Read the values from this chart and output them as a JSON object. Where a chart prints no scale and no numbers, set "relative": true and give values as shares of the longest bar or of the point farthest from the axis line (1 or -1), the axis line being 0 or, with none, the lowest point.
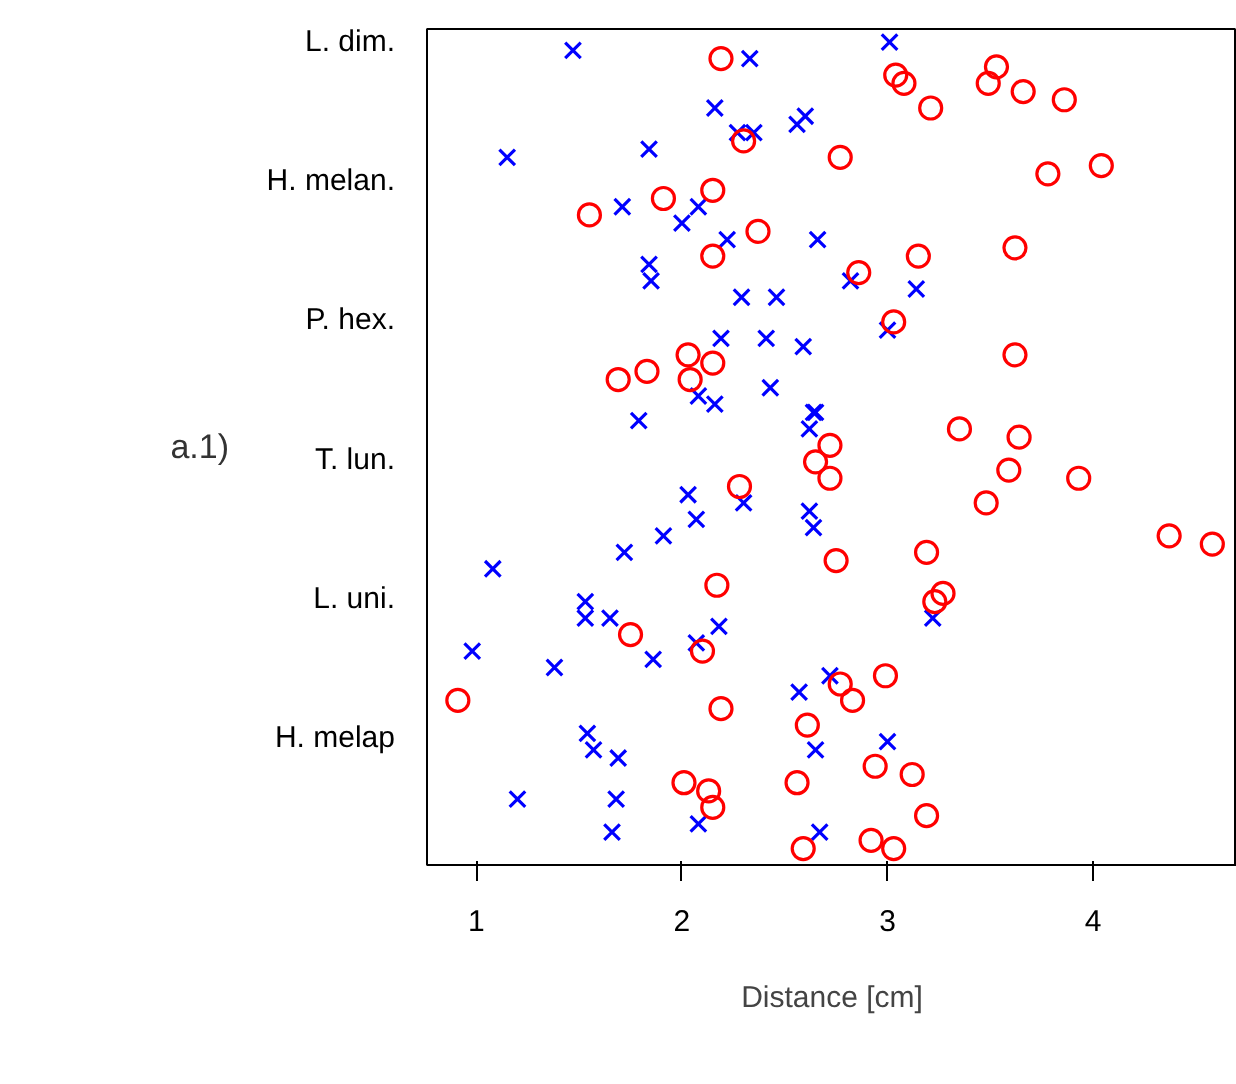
{
  "chart_data": {
    "type": "scatter",
    "xlabel": "Distance [cm]",
    "relative": true,
    "annotations": [
      "L. dim.",
      "H. melan.",
      "P. hex.",
      "T. lun.",
      "L. uni.",
      "H. melap",
      "a.1)"
    ],
    "xlim": [
      0.76,
      4.7
    ],
    "xticks": [
      1,
      2,
      3,
      4
    ],
    "grid": false,
    "series": [
      {
        "color": "#0000ff",
        "marker": "cross",
        "x": [
          1.47,
          2.33,
          3.01,
          2.16,
          2.27,
          2.35,
          2.56,
          2.6,
          1.15,
          1.84,
          1.71,
          2.0,
          2.08,
          2.22,
          2.66,
          1.84,
          1.85,
          2.29,
          2.46,
          2.82,
          3.14,
          3.0,
          2.19,
          2.41,
          2.59,
          2.08,
          2.16,
          2.43,
          2.64,
          2.65,
          2.62,
          1.79,
          2.03,
          2.07,
          2.3,
          2.62,
          2.64,
          1.91,
          1.72,
          1.08,
          1.53,
          1.53,
          1.65,
          0.98,
          1.38,
          1.86,
          2.07,
          2.18,
          3.22,
          2.57,
          2.72,
          1.54,
          1.57,
          1.69,
          2.65,
          3.0,
          1.2,
          1.68,
          1.66,
          2.08,
          2.67
        ],
        "values": [
          0.99,
          0.98,
          1.0,
          0.92,
          0.89,
          0.89,
          0.9,
          0.91,
          0.86,
          0.87,
          0.8,
          0.78,
          0.8,
          0.76,
          0.76,
          0.73,
          0.71,
          0.69,
          0.69,
          0.71,
          0.7,
          0.65,
          0.64,
          0.64,
          0.63,
          0.57,
          0.56,
          0.58,
          0.55,
          0.55,
          0.53,
          0.54,
          0.45,
          0.42,
          0.44,
          0.43,
          0.41,
          0.4,
          0.38,
          0.36,
          0.32,
          0.3,
          0.3,
          0.26,
          0.24,
          0.25,
          0.27,
          0.29,
          0.3,
          0.21,
          0.23,
          0.16,
          0.14,
          0.13,
          0.14,
          0.15,
          0.08,
          0.08,
          0.04,
          0.05,
          0.04
        ]
      },
      {
        "color": "#ff0000",
        "marker": "circle",
        "x": [
          2.19,
          3.04,
          3.08,
          3.53,
          3.49,
          3.66,
          3.86,
          3.21,
          2.3,
          2.77,
          3.78,
          4.04,
          1.55,
          1.91,
          2.15,
          2.37,
          2.15,
          3.62,
          2.86,
          3.15,
          3.03,
          2.03,
          2.15,
          1.83,
          2.04,
          1.69,
          3.62,
          3.35,
          3.64,
          2.72,
          2.65,
          2.72,
          3.59,
          3.93,
          3.48,
          2.28,
          4.37,
          4.58,
          3.19,
          2.75,
          2.17,
          3.23,
          3.27,
          1.75,
          2.1,
          2.99,
          2.77,
          2.83,
          0.91,
          2.19,
          2.61,
          2.94,
          3.12,
          2.56,
          2.01,
          2.13,
          2.15,
          3.19,
          2.92,
          3.03,
          2.59
        ],
        "values": [
          0.98,
          0.96,
          0.95,
          0.97,
          0.95,
          0.94,
          0.93,
          0.92,
          0.88,
          0.86,
          0.84,
          0.85,
          0.79,
          0.81,
          0.82,
          0.77,
          0.74,
          0.75,
          0.72,
          0.74,
          0.66,
          0.62,
          0.61,
          0.6,
          0.59,
          0.59,
          0.62,
          0.53,
          0.52,
          0.51,
          0.49,
          0.47,
          0.48,
          0.47,
          0.44,
          0.46,
          0.4,
          0.39,
          0.38,
          0.37,
          0.34,
          0.32,
          0.33,
          0.28,
          0.26,
          0.23,
          0.22,
          0.2,
          0.2,
          0.19,
          0.17,
          0.12,
          0.11,
          0.1,
          0.1,
          0.09,
          0.07,
          0.06,
          0.03,
          0.02,
          0.02
        ]
      }
    ]
  }
}
